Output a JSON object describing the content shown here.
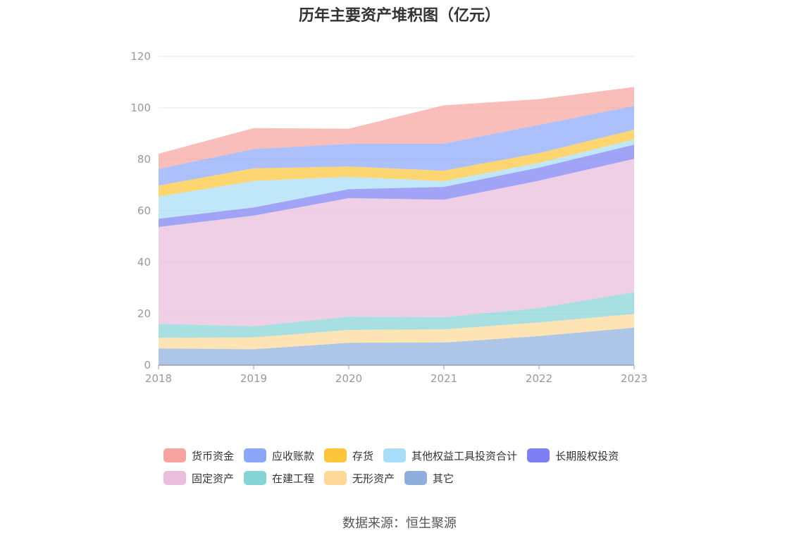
{
  "source_note": "数据来源：恒生聚源",
  "chart_data": {
    "type": "area",
    "stacked": true,
    "title": "历年主要资产堆积图（亿元）",
    "xlabel": "",
    "ylabel": "",
    "x": [
      "2018",
      "2019",
      "2020",
      "2021",
      "2022",
      "2023"
    ],
    "ylim": [
      0,
      120
    ],
    "yticks": [
      0,
      20,
      40,
      60,
      80,
      100,
      120
    ],
    "grid": true,
    "legend_position": "bottom",
    "series": [
      {
        "name": "其它",
        "color": "#8eafdc",
        "values": [
          6.5,
          6.2,
          8.7,
          8.8,
          11.3,
          14.6
        ]
      },
      {
        "name": "无形资产",
        "color": "#fdd898",
        "values": [
          4.1,
          4.6,
          5.0,
          5.1,
          5.3,
          5.3
        ]
      },
      {
        "name": "在建工程",
        "color": "#86d3d5",
        "values": [
          5.5,
          4.3,
          5.2,
          4.8,
          5.6,
          8.5
        ]
      },
      {
        "name": "固定资产",
        "color": "#e9bddb",
        "values": [
          37.6,
          43.0,
          46.0,
          45.6,
          49.5,
          51.8
        ]
      },
      {
        "name": "长期股权投资",
        "color": "#7d7ff2",
        "values": [
          3.2,
          3.2,
          3.5,
          5.0,
          5.1,
          5.5
        ]
      },
      {
        "name": "其他权益工具投资合计",
        "color": "#a8dcf7",
        "values": [
          8.6,
          10.3,
          4.8,
          2.2,
          1.8,
          2.0
        ]
      },
      {
        "name": "存货",
        "color": "#fcc63b",
        "values": [
          4.3,
          4.9,
          4.0,
          4.1,
          3.8,
          3.8
        ]
      },
      {
        "name": "应收账款",
        "color": "#8ca7f9",
        "values": [
          6.5,
          7.5,
          8.8,
          10.5,
          11.0,
          9.3
        ]
      },
      {
        "name": "货币资金",
        "color": "#f7a3a0",
        "values": [
          5.9,
          8.1,
          5.9,
          14.9,
          10.0,
          7.3
        ]
      }
    ],
    "legend_order": [
      [
        "货币资金",
        "应收账款",
        "存货",
        "其他权益工具投资合计",
        "长期股权投资"
      ],
      [
        "固定资产",
        "在建工程",
        "无形资产",
        "其它"
      ]
    ]
  }
}
